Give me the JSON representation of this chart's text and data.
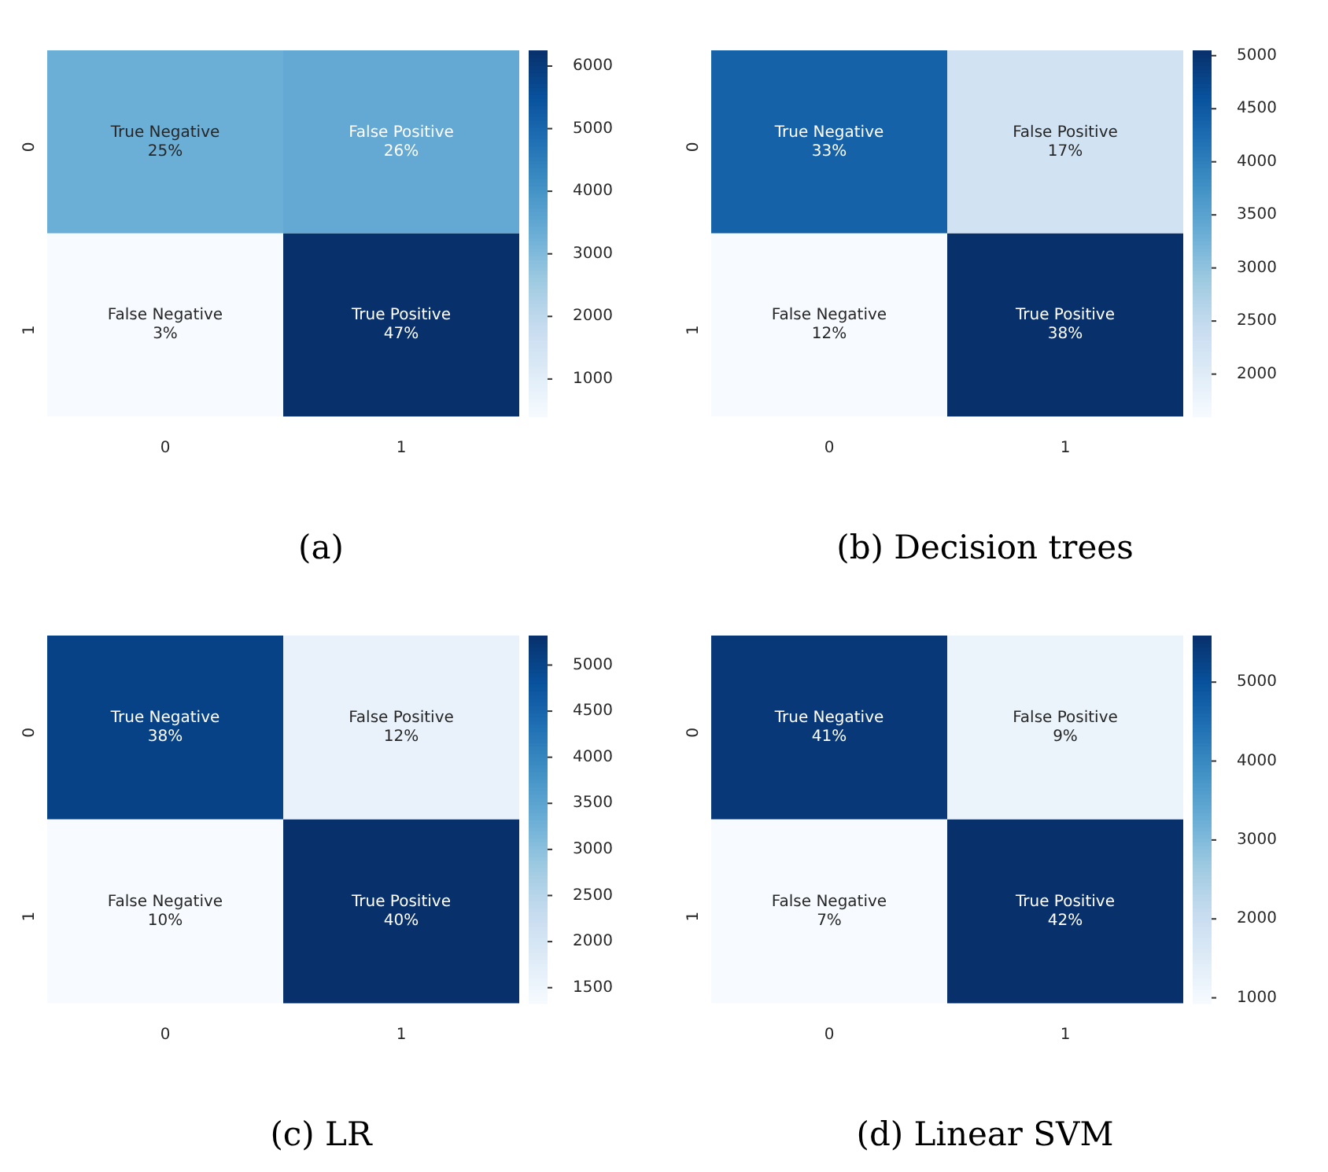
{
  "chart_data": [
    {
      "type": "heatmap",
      "title": "(a)",
      "categories": [
        "0",
        "1"
      ],
      "y_categories": [
        "0",
        "1"
      ],
      "cells": [
        [
          3325,
          3458
        ],
        [
          400,
          6251
        ]
      ],
      "cell_labels": [
        [
          "True Negative\n25%",
          "False Positive\n26%"
        ],
        [
          "False Negative\n3%",
          "True Positive\n47%"
        ]
      ],
      "clim": [
        400,
        6251
      ],
      "cticks": [
        1000,
        2000,
        3000,
        4000,
        5000,
        6000
      ]
    },
    {
      "type": "heatmap",
      "title": "(b) Decision trees",
      "categories": [
        "0",
        "1"
      ],
      "y_categories": [
        "0",
        "1"
      ],
      "cells": [
        [
          4390,
          2260
        ],
        [
          1600,
          5050
        ]
      ],
      "cell_labels": [
        [
          "True Negative\n33%",
          "False Positive\n17%"
        ],
        [
          "False Negative\n12%",
          "True Positive\n38%"
        ]
      ],
      "clim": [
        1600,
        5050
      ],
      "cticks": [
        2000,
        2500,
        3000,
        3500,
        4000,
        4500,
        5000
      ]
    },
    {
      "type": "heatmap",
      "title": "(c) LR",
      "categories": [
        "0",
        "1"
      ],
      "y_categories": [
        "0",
        "1"
      ],
      "cells": [
        [
          5050,
          1600
        ],
        [
          1330,
          5320
        ]
      ],
      "cell_labels": [
        [
          "True Negative\n38%",
          "False Positive\n12%"
        ],
        [
          "False Negative\n10%",
          "True Positive\n40%"
        ]
      ],
      "clim": [
        1330,
        5320
      ],
      "cticks": [
        1500,
        2000,
        2500,
        3000,
        3500,
        4000,
        4500,
        5000
      ]
    },
    {
      "type": "heatmap",
      "title": "(d) Linear SVM",
      "categories": [
        "0",
        "1"
      ],
      "y_categories": [
        "0",
        "1"
      ],
      "cells": [
        [
          5450,
          1200
        ],
        [
          930,
          5590
        ]
      ],
      "cell_labels": [
        [
          "True Negative\n41%",
          "False Positive\n9%"
        ],
        [
          "False Negative\n7%",
          "True Positive\n42%"
        ]
      ],
      "clim": [
        930,
        5590
      ],
      "cticks": [
        1000,
        2000,
        3000,
        4000,
        5000
      ]
    }
  ]
}
